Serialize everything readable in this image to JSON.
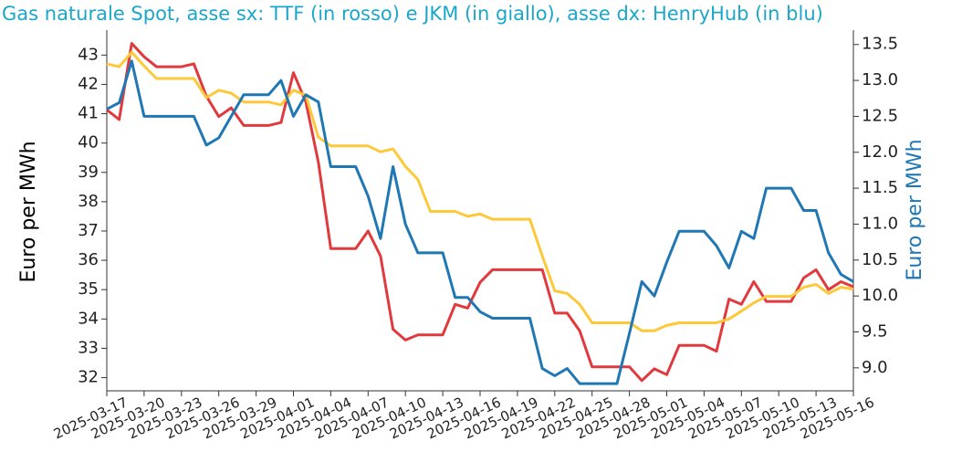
{
  "chart_data": {
    "type": "line",
    "title": "Gas naturale Spot, asse sx: TTF (in rosso) e JKM (in giallo), asse dx: HenryHub (in blu)",
    "ylabel": "Euro per MWh",
    "y2label": "Euro per MWh",
    "x": [
      "2025-03-17",
      "2025-03-18",
      "2025-03-19",
      "2025-03-20",
      "2025-03-21",
      "2025-03-22",
      "2025-03-23",
      "2025-03-24",
      "2025-03-25",
      "2025-03-26",
      "2025-03-27",
      "2025-03-28",
      "2025-03-29",
      "2025-03-30",
      "2025-03-31",
      "2025-04-01",
      "2025-04-02",
      "2025-04-03",
      "2025-04-04",
      "2025-04-05",
      "2025-04-06",
      "2025-04-07",
      "2025-04-08",
      "2025-04-09",
      "2025-04-10",
      "2025-04-11",
      "2025-04-12",
      "2025-04-13",
      "2025-04-14",
      "2025-04-15",
      "2025-04-16",
      "2025-04-17",
      "2025-04-18",
      "2025-04-19",
      "2025-04-20",
      "2025-04-21",
      "2025-04-22",
      "2025-04-23",
      "2025-04-24",
      "2025-04-25",
      "2025-04-26",
      "2025-04-27",
      "2025-04-28",
      "2025-04-29",
      "2025-04-30",
      "2025-05-01",
      "2025-05-02",
      "2025-05-03",
      "2025-05-04",
      "2025-05-05",
      "2025-05-06",
      "2025-05-07",
      "2025-05-08",
      "2025-05-09",
      "2025-05-10",
      "2025-05-11",
      "2025-05-12",
      "2025-05-13",
      "2025-05-14",
      "2025-05-15",
      "2025-05-16"
    ],
    "xlim": [
      "2025-03-17",
      "2025-05-16"
    ],
    "xticks": [
      "2025-03-17",
      "2025-03-20",
      "2025-03-23",
      "2025-03-26",
      "2025-03-29",
      "2025-04-01",
      "2025-04-04",
      "2025-04-07",
      "2025-04-10",
      "2025-04-13",
      "2025-04-16",
      "2025-04-19",
      "2025-04-22",
      "2025-04-25",
      "2025-04-28",
      "2025-05-01",
      "2025-05-04",
      "2025-05-07",
      "2025-05-10",
      "2025-05-13",
      "2025-05-16"
    ],
    "ylim": [
      31.55,
      43.85
    ],
    "yticks": [
      32,
      33,
      34,
      35,
      36,
      37,
      38,
      39,
      40,
      41,
      42,
      43
    ],
    "y2lim": [
      8.68,
      13.7
    ],
    "y2ticks": [
      {
        "value": 9,
        "label": "9.0"
      },
      9.5,
      {
        "value": 10,
        "label": "10.0"
      },
      10.5,
      {
        "value": 11,
        "label": "11.0"
      },
      11.5,
      {
        "value": 12,
        "label": "12.0"
      },
      12.5,
      {
        "value": 13,
        "label": "13.0"
      },
      13.5
    ],
    "series": [
      {
        "color": "#e03a3e",
        "values": [
          41.13,
          40.8,
          43.4,
          42.94,
          42.6,
          42.6,
          42.6,
          42.7,
          41.6,
          40.9,
          41.2,
          40.6,
          40.6,
          40.6,
          40.7,
          42.4,
          41.4,
          39.35,
          36.4,
          36.4,
          36.4,
          37.0,
          36.15,
          33.65,
          33.28,
          33.46,
          33.46,
          33.46,
          34.5,
          34.37,
          35.25,
          35.68,
          35.68,
          35.68,
          35.68,
          35.68,
          34.2,
          34.2,
          33.6,
          32.37,
          32.37,
          32.37,
          32.37,
          31.9,
          32.3,
          32.1,
          33.1,
          33.1,
          33.1,
          32.9,
          34.68,
          34.5,
          35.27,
          34.6,
          34.6,
          34.6,
          35.4,
          35.68,
          35.0,
          35.27,
          35.1
        ]
      },
      {
        "color": "#fdc93a",
        "values": [
          42.7,
          42.6,
          43.1,
          42.63,
          42.2,
          42.2,
          42.2,
          42.2,
          41.55,
          41.8,
          41.7,
          41.4,
          41.4,
          41.4,
          41.3,
          41.8,
          41.63,
          40.2,
          39.9,
          39.9,
          39.9,
          39.9,
          39.7,
          39.8,
          39.2,
          38.76,
          37.67,
          37.67,
          37.67,
          37.5,
          37.58,
          37.4,
          37.4,
          37.4,
          37.4,
          36.15,
          34.96,
          34.87,
          34.5,
          33.87,
          33.87,
          33.87,
          33.87,
          33.6,
          33.6,
          33.78,
          33.87,
          33.87,
          33.87,
          33.87,
          34.0,
          34.27,
          34.55,
          34.77,
          34.77,
          34.77,
          35.08,
          35.18,
          34.87,
          35.08,
          35.02
        ]
      },
      {
        "color": "#1f77b4",
        "axis": "y2",
        "values": [
          12.6,
          12.69,
          13.27,
          12.5,
          12.5,
          12.5,
          12.5,
          12.5,
          12.1,
          12.2,
          12.5,
          12.8,
          12.8,
          12.8,
          13.0,
          12.5,
          12.8,
          12.7,
          11.8,
          11.8,
          11.8,
          11.39,
          10.8,
          11.8,
          11.0,
          10.6,
          10.6,
          10.6,
          9.98,
          9.98,
          9.78,
          9.69,
          9.69,
          9.69,
          9.69,
          8.99,
          8.89,
          8.99,
          8.78,
          8.78,
          8.78,
          8.78,
          9.48,
          10.2,
          10.0,
          10.47,
          10.9,
          10.9,
          10.9,
          10.7,
          10.39,
          10.9,
          10.8,
          11.5,
          11.5,
          11.5,
          11.19,
          11.19,
          10.6,
          10.3,
          10.2
        ]
      }
    ]
  }
}
